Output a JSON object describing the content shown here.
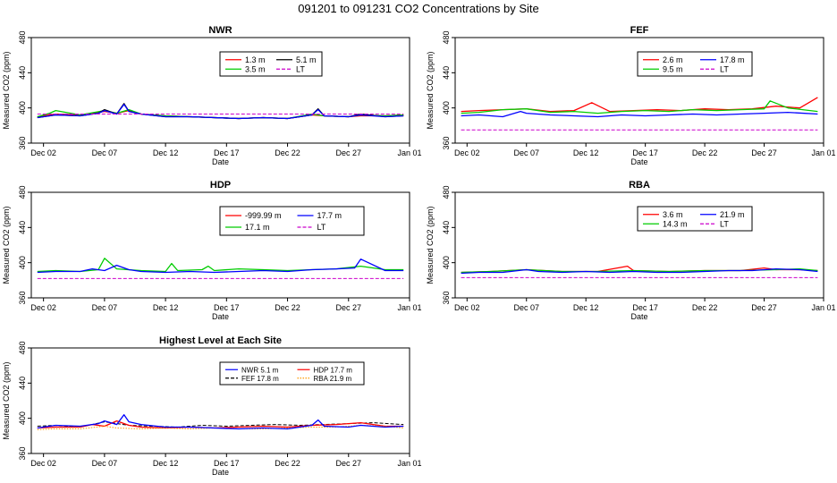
{
  "page_title": "091201  to  091231 CO2 Concentrations by Site",
  "common": {
    "x_tick_labels": [
      "Dec 02",
      "Dec 07",
      "Dec 12",
      "Dec 17",
      "Dec 22",
      "Dec 27",
      "Jan 01"
    ],
    "x_tick_days": [
      2,
      7,
      12,
      17,
      22,
      27,
      32
    ],
    "y_tick_labels": [
      "360",
      "400",
      "440",
      "480"
    ],
    "y_tick_values": [
      360,
      400,
      440,
      480
    ],
    "xlabel": "Date",
    "ylabel": "Measured CO2 (ppm)",
    "xlim": [
      1.0,
      32.0
    ],
    "ylim": [
      360,
      480
    ]
  },
  "colors": {
    "red": "#ff0000",
    "green": "#00cc00",
    "blue": "#0000ff",
    "magenta": "#cc00cc",
    "black": "#000000",
    "orange": "#ff9900"
  },
  "chart_data": [
    {
      "id": "nwr",
      "type": "line",
      "title": "NWR",
      "xlabel": "Date",
      "ylabel": "Measured CO2 (ppm)",
      "xlim": [
        1.0,
        32.0
      ],
      "ylim": [
        360,
        480
      ],
      "legend_position": "top-center",
      "legend": [
        {
          "label": "1.3 m",
          "color": "red",
          "style": "solid"
        },
        {
          "label": "5.1 m",
          "color": "black",
          "style": "solid"
        },
        {
          "label": "3.5 m",
          "color": "green",
          "style": "solid"
        },
        {
          "label": "LT",
          "color": "magenta",
          "style": "dashed"
        }
      ],
      "series": [
        {
          "name": "1.3 m",
          "color": "red",
          "style": "solid",
          "x": [
            1.5,
            3,
            5,
            7,
            8,
            9,
            10,
            12,
            14,
            16,
            18,
            20,
            22,
            24,
            25,
            27,
            28,
            30,
            31.5
          ],
          "y": [
            390,
            393,
            392,
            396,
            394,
            397,
            393,
            391,
            390,
            389,
            388,
            389,
            388,
            392,
            391,
            390,
            391,
            391,
            392
          ]
        },
        {
          "name": "3.5 m",
          "color": "green",
          "style": "solid",
          "x": [
            1.5,
            2.5,
            3,
            5,
            7,
            8,
            9,
            10,
            12,
            14,
            16,
            18,
            20,
            22,
            24,
            25,
            27,
            28,
            30,
            31.5
          ],
          "y": [
            390,
            394,
            397,
            392,
            397,
            394,
            398,
            393,
            391,
            390,
            389,
            388,
            389,
            388,
            393,
            391,
            390,
            392,
            391,
            392
          ]
        },
        {
          "name": "5.1 m",
          "color": "black",
          "style": "solid",
          "x": [
            1.5,
            3,
            5,
            6.5,
            7,
            8,
            8.6,
            9,
            10,
            12,
            14,
            16,
            18,
            20,
            22,
            24,
            24.5,
            25,
            27,
            28,
            30,
            31.5
          ],
          "y": [
            389,
            392,
            391,
            394,
            398,
            393,
            405,
            396,
            393,
            390,
            390,
            389,
            388,
            389,
            388,
            392,
            399,
            391,
            390,
            393,
            390,
            391
          ]
        },
        {
          "name": "5.1 m (overlay)",
          "color": "blue",
          "style": "solid",
          "x": [
            1.5,
            3,
            5,
            6.5,
            7,
            8,
            8.6,
            9,
            10,
            12,
            14,
            16,
            18,
            20,
            22,
            24,
            24.5,
            25,
            27,
            28,
            30,
            31.5
          ],
          "y": [
            389,
            392,
            391,
            394,
            397,
            393,
            404,
            396,
            393,
            390,
            390,
            389,
            388,
            389,
            388,
            392,
            398,
            391,
            390,
            392,
            390,
            391
          ]
        },
        {
          "name": "LT",
          "color": "magenta",
          "style": "dashed",
          "x": [
            1.5,
            31.5
          ],
          "y": [
            393,
            393
          ]
        }
      ]
    },
    {
      "id": "fef",
      "type": "line",
      "title": "FEF",
      "xlabel": "Date",
      "ylabel": "Measured CO2 (ppm)",
      "xlim": [
        1.0,
        32.0
      ],
      "ylim": [
        360,
        480
      ],
      "legend_position": "top-center",
      "legend": [
        {
          "label": "2.6 m",
          "color": "red",
          "style": "solid"
        },
        {
          "label": "17.8 m",
          "color": "blue",
          "style": "solid"
        },
        {
          "label": "9.5 m",
          "color": "green",
          "style": "solid"
        },
        {
          "label": "LT",
          "color": "magenta",
          "style": "dashed"
        }
      ],
      "series": [
        {
          "name": "2.6 m",
          "color": "red",
          "style": "solid",
          "x": [
            1.5,
            3,
            5,
            7,
            9,
            11,
            12.5,
            14,
            16,
            18,
            20,
            22,
            24,
            26,
            28,
            30,
            31.5
          ],
          "y": [
            396,
            397,
            398,
            399,
            396,
            397,
            406,
            396,
            397,
            398,
            397,
            399,
            398,
            399,
            402,
            400,
            412
          ]
        },
        {
          "name": "9.5 m",
          "color": "green",
          "style": "solid",
          "x": [
            1.5,
            3,
            5,
            7,
            9,
            11,
            13,
            15,
            17,
            19,
            21,
            23,
            25,
            27,
            27.5,
            29,
            31.5
          ],
          "y": [
            394,
            395,
            398,
            399,
            395,
            396,
            394,
            396,
            397,
            396,
            398,
            397,
            398,
            399,
            408,
            400,
            396
          ]
        },
        {
          "name": "17.8 m",
          "color": "blue",
          "style": "solid",
          "x": [
            1.5,
            3,
            5,
            6.5,
            7,
            9,
            11,
            13,
            15,
            17,
            19,
            21,
            23,
            25,
            27,
            29,
            31.5
          ],
          "y": [
            391,
            392,
            390,
            396,
            394,
            392,
            391,
            390,
            392,
            391,
            392,
            393,
            392,
            393,
            394,
            395,
            393
          ]
        },
        {
          "name": "LT",
          "color": "magenta",
          "style": "dashed",
          "x": [
            1.5,
            31.5
          ],
          "y": [
            375,
            375
          ]
        }
      ]
    },
    {
      "id": "hdp",
      "type": "line",
      "title": "HDP",
      "xlabel": "Date",
      "ylabel": "Measured CO2 (ppm)",
      "xlim": [
        1.0,
        32.0
      ],
      "ylim": [
        360,
        480
      ],
      "legend_position": "top-center",
      "legend": [
        {
          "label": "-999.99 m",
          "color": "red",
          "style": "solid"
        },
        {
          "label": "17.7 m",
          "color": "blue",
          "style": "solid"
        },
        {
          "label": "17.1 m",
          "color": "green",
          "style": "solid"
        },
        {
          "label": "LT",
          "color": "magenta",
          "style": "dashed"
        }
      ],
      "series": [
        {
          "name": "17.1 m",
          "color": "green",
          "style": "solid",
          "x": [
            1.5,
            3,
            5,
            6.5,
            7,
            8,
            10,
            12,
            12.5,
            13,
            15,
            15.5,
            16,
            18,
            20,
            22,
            24,
            26,
            28,
            30,
            31.5
          ],
          "y": [
            390,
            391,
            390,
            392,
            405,
            393,
            391,
            390,
            399,
            391,
            392,
            396,
            391,
            393,
            392,
            391,
            392,
            393,
            396,
            392,
            392
          ]
        },
        {
          "name": "17.7 m",
          "color": "blue",
          "style": "solid",
          "x": [
            1.5,
            3,
            5,
            6,
            7,
            8,
            9,
            10,
            12,
            14,
            16,
            18,
            20,
            22,
            24,
            26,
            27.5,
            28,
            30,
            31.5
          ],
          "y": [
            389,
            390,
            390,
            393,
            391,
            397,
            392,
            390,
            389,
            390,
            389,
            390,
            391,
            390,
            392,
            393,
            394,
            404,
            391,
            391
          ]
        },
        {
          "name": "LT",
          "color": "magenta",
          "style": "dashed",
          "x": [
            1.5,
            31.5
          ],
          "y": [
            382,
            382
          ]
        }
      ]
    },
    {
      "id": "rba",
      "type": "line",
      "title": "RBA",
      "xlabel": "Date",
      "ylabel": "Measured CO2 (ppm)",
      "xlim": [
        1.0,
        32.0
      ],
      "ylim": [
        360,
        480
      ],
      "legend_position": "top-center",
      "legend": [
        {
          "label": "3.6 m",
          "color": "red",
          "style": "solid"
        },
        {
          "label": "21.9 m",
          "color": "blue",
          "style": "solid"
        },
        {
          "label": "14.3 m",
          "color": "green",
          "style": "solid"
        },
        {
          "label": "LT",
          "color": "magenta",
          "style": "dashed"
        }
      ],
      "series": [
        {
          "name": "3.6 m",
          "color": "red",
          "style": "solid",
          "x": [
            1.5,
            4,
            7,
            10,
            13,
            15.5,
            16,
            19,
            22,
            25,
            27,
            28,
            30,
            31.5
          ],
          "y": [
            389,
            390,
            392,
            390,
            390,
            396,
            391,
            390,
            391,
            391,
            394,
            392,
            392,
            391
          ]
        },
        {
          "name": "14.3 m",
          "color": "green",
          "style": "solid",
          "x": [
            1.5,
            4,
            7,
            10,
            13,
            16,
            19,
            22,
            25,
            28,
            30,
            31.5
          ],
          "y": [
            389,
            390,
            392,
            390,
            390,
            391,
            390,
            391,
            391,
            392,
            393,
            391
          ]
        },
        {
          "name": "21.9 m",
          "color": "blue",
          "style": "solid",
          "x": [
            1.5,
            3,
            5,
            7,
            8,
            10,
            12,
            14,
            16,
            18,
            20,
            22,
            24,
            26,
            28,
            30,
            31.5
          ],
          "y": [
            388,
            389,
            389,
            392,
            390,
            389,
            390,
            389,
            390,
            389,
            389,
            390,
            391,
            391,
            393,
            392,
            390
          ]
        },
        {
          "name": "LT",
          "color": "magenta",
          "style": "dashed",
          "x": [
            1.5,
            31.5
          ],
          "y": [
            383,
            383
          ]
        }
      ]
    },
    {
      "id": "highest",
      "type": "line",
      "title": "Highest Level at Each Site",
      "xlabel": "Date",
      "ylabel": "Measured CO2 (ppm)",
      "xlim": [
        1.0,
        32.0
      ],
      "ylim": [
        360,
        480
      ],
      "legend_position": "top-center",
      "legend": [
        {
          "label": "NWR  5.1 m",
          "color": "blue",
          "style": "solid"
        },
        {
          "label": "HDP  17.7 m",
          "color": "red",
          "style": "solid"
        },
        {
          "label": "FEF  17.8 m",
          "color": "black",
          "style": "dashed"
        },
        {
          "label": "RBA  21.9 m",
          "color": "orange",
          "style": "dotted"
        }
      ],
      "series": [
        {
          "name": "FEF  17.8 m",
          "color": "black",
          "style": "dashed",
          "x": [
            1.5,
            3,
            5,
            7,
            9,
            11,
            13,
            15,
            17,
            19,
            21,
            23,
            25,
            27,
            29,
            31.5
          ],
          "y": [
            391,
            392,
            390,
            396,
            392,
            391,
            390,
            392,
            391,
            392,
            393,
            392,
            393,
            394,
            395,
            393
          ]
        },
        {
          "name": "HDP  17.7 m",
          "color": "red",
          "style": "solid",
          "x": [
            1.5,
            3,
            5,
            6,
            7,
            8,
            9,
            10,
            12,
            14,
            16,
            18,
            20,
            22,
            24,
            26,
            28,
            30,
            31.5
          ],
          "y": [
            389,
            390,
            390,
            393,
            391,
            397,
            392,
            390,
            389,
            390,
            389,
            390,
            391,
            390,
            392,
            393,
            395,
            391,
            391
          ]
        },
        {
          "name": "RBA  21.9 m",
          "color": "orange",
          "style": "dotted",
          "x": [
            1.5,
            3,
            5,
            7,
            8,
            10,
            12,
            14,
            16,
            18,
            20,
            22,
            24,
            26,
            28,
            30,
            31.5
          ],
          "y": [
            387,
            388,
            388,
            391,
            389,
            388,
            389,
            388,
            389,
            388,
            388,
            389,
            390,
            390,
            392,
            391,
            389
          ]
        },
        {
          "name": "NWR  5.1 m",
          "color": "blue",
          "style": "solid",
          "x": [
            1.5,
            3,
            5,
            6.5,
            7,
            8,
            8.6,
            9,
            10,
            12,
            14,
            16,
            18,
            20,
            22,
            24,
            24.5,
            25,
            27,
            28,
            30,
            31.5
          ],
          "y": [
            389,
            392,
            391,
            394,
            397,
            393,
            404,
            396,
            393,
            390,
            390,
            389,
            388,
            389,
            388,
            392,
            398,
            391,
            390,
            392,
            390,
            391
          ]
        }
      ]
    }
  ]
}
